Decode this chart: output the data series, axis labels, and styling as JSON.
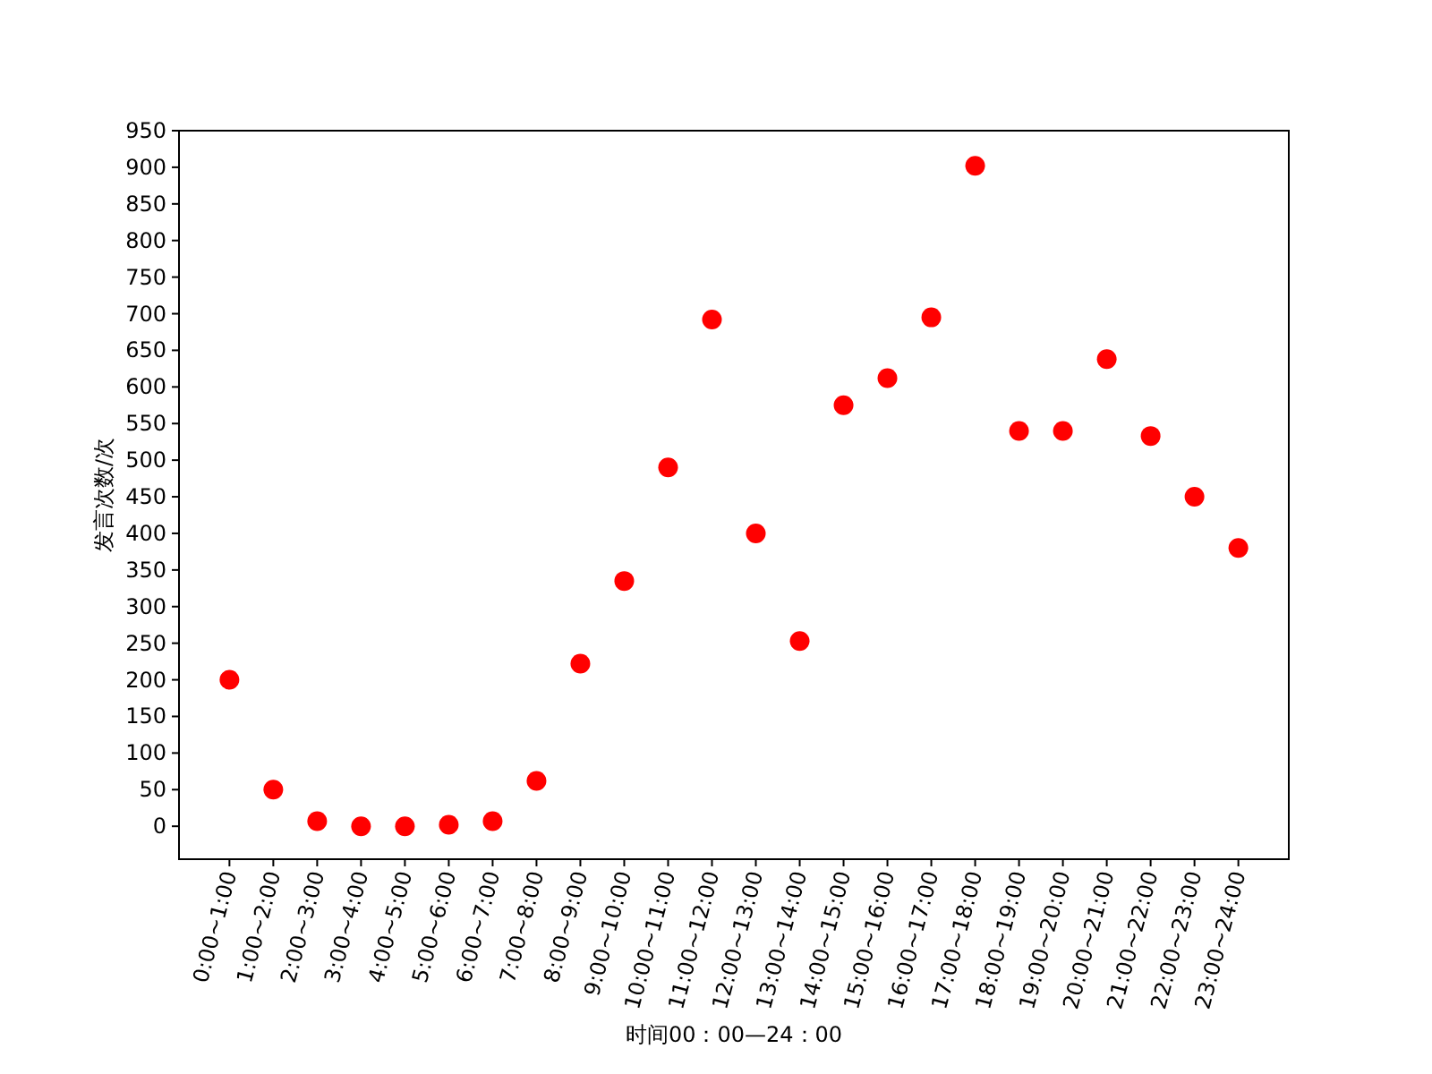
{
  "chart_data": {
    "type": "scatter",
    "xlabel": "时间00：00—24：00",
    "ylabel": "发言次数/次",
    "categories": [
      "0:00~1:00",
      "1:00~2:00",
      "2:00~3:00",
      "3:00~4:00",
      "4:00~5:00",
      "5:00~6:00",
      "6:00~7:00",
      "7:00~8:00",
      "8:00~9:00",
      "9:00~10:00",
      "10:00~11:00",
      "11:00~12:00",
      "12:00~13:00",
      "13:00~14:00",
      "14:00~15:00",
      "15:00~16:00",
      "16:00~17:00",
      "17:00~18:00",
      "18:00~19:00",
      "19:00~20:00",
      "20:00~21:00",
      "21:00~22:00",
      "22:00~23:00",
      "23:00~24:00"
    ],
    "series": [
      {
        "color": "#ff0000",
        "values": [
          200,
          50,
          7,
          0,
          0,
          2,
          7,
          62,
          222,
          335,
          490,
          692,
          400,
          253,
          575,
          612,
          695,
          902,
          540,
          540,
          638,
          533,
          450,
          380
        ]
      }
    ],
    "ylim": [
      -45,
      950
    ],
    "yticks": [
      0,
      50,
      100,
      150,
      200,
      250,
      300,
      350,
      400,
      450,
      500,
      550,
      600,
      650,
      700,
      750,
      800,
      850,
      900,
      950
    ],
    "marker": "circle",
    "grid": false
  }
}
